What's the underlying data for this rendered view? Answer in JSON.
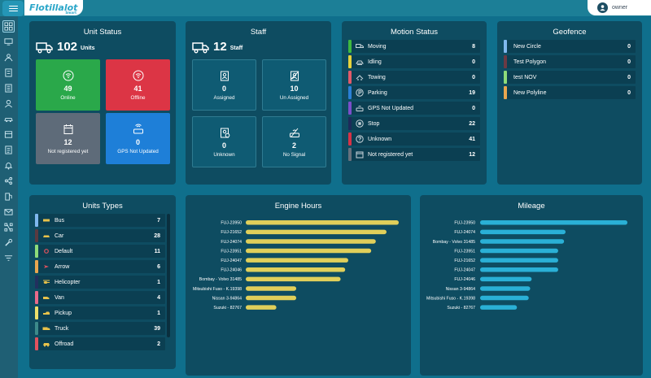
{
  "app": {
    "logo_text": "Flotillalot",
    "logo_sub": "Smart",
    "user_name": "owner"
  },
  "sidebar": {
    "items": [
      {
        "icon": "dashboard-icon"
      },
      {
        "icon": "monitor-icon"
      },
      {
        "icon": "route-icon"
      },
      {
        "icon": "notebook-icon"
      },
      {
        "icon": "report-icon"
      },
      {
        "icon": "person-icon"
      },
      {
        "icon": "car-icon"
      },
      {
        "icon": "inventory-icon"
      },
      {
        "icon": "list-icon"
      },
      {
        "icon": "bell-icon"
      },
      {
        "icon": "share-icon"
      },
      {
        "icon": "fuel-icon"
      },
      {
        "icon": "mail-icon"
      },
      {
        "icon": "network-icon"
      },
      {
        "icon": "wrench-icon"
      },
      {
        "icon": "filter-icon"
      }
    ]
  },
  "unit_status": {
    "title": "Unit Status",
    "count": "102",
    "unit_label": "Units",
    "tiles": [
      {
        "value": "49",
        "label": "Online",
        "color": "#2aa84a",
        "icon": "wifi-icon"
      },
      {
        "value": "41",
        "label": "Offline",
        "color": "#dc3545",
        "icon": "wifi-off-icon"
      },
      {
        "value": "12",
        "label": "Not registered yet",
        "color": "#5e6b79",
        "icon": "calendar-icon"
      },
      {
        "value": "0",
        "label": "GPS Not Updated",
        "color": "#1e7fd8",
        "icon": "gps-device-icon"
      }
    ]
  },
  "staff": {
    "title": "Staff",
    "count": "12",
    "unit_label": "Staff",
    "tiles": [
      {
        "value": "0",
        "label": "Assigned",
        "icon": "assigned-icon"
      },
      {
        "value": "10",
        "label": "Un Assigned",
        "icon": "unassigned-icon"
      },
      {
        "value": "0",
        "label": "Unknown",
        "icon": "unknown-icon"
      },
      {
        "value": "2",
        "label": "No Signal",
        "icon": "no-signal-icon"
      }
    ]
  },
  "motion_status": {
    "title": "Motion Status",
    "rows": [
      {
        "label": "Moving",
        "value": "8",
        "color": "#3fb83f",
        "icon": "truck-icon"
      },
      {
        "label": "Idling",
        "value": "0",
        "color": "#e6d23c",
        "icon": "idle-icon"
      },
      {
        "label": "Towing",
        "value": "0",
        "color": "#e05a6a",
        "icon": "tow-icon"
      },
      {
        "label": "Parking",
        "value": "19",
        "color": "#2a7fd6",
        "icon": "parking-icon"
      },
      {
        "label": "GPS Not Updated",
        "value": "0",
        "color": "#7b4fc9",
        "icon": "gps-icon"
      },
      {
        "label": "Stop",
        "value": "22",
        "color": "#1e2a5a",
        "icon": "stop-icon"
      },
      {
        "label": "Unknown",
        "value": "41",
        "color": "#d63347",
        "icon": "question-icon"
      },
      {
        "label": "Not registered yet",
        "value": "12",
        "color": "#68727e",
        "icon": "calendar-icon"
      }
    ]
  },
  "geofence": {
    "title": "Geofence",
    "rows": [
      {
        "label": "New Circle",
        "value": "0",
        "color": "#7fb8ee"
      },
      {
        "label": "Test Polygon",
        "value": "0",
        "color": "#6b3a44"
      },
      {
        "label": "test NOV",
        "value": "0",
        "color": "#8ddc7a"
      },
      {
        "label": "New Polyline",
        "value": "0",
        "color": "#e8a64f"
      }
    ]
  },
  "units_types": {
    "title": "Units Types",
    "rows": [
      {
        "label": "Bus",
        "value": "7",
        "color": "#7fb8ee"
      },
      {
        "label": "Car",
        "value": "28",
        "color": "#5a3a40"
      },
      {
        "label": "Default",
        "value": "11",
        "color": "#8ddc7a"
      },
      {
        "label": "Arrow",
        "value": "6",
        "color": "#e8a64f"
      },
      {
        "label": "Helicopter",
        "value": "1",
        "color": "#22305e"
      },
      {
        "label": "Van",
        "value": "4",
        "color": "#e86a8a"
      },
      {
        "label": "Pickup",
        "value": "1",
        "color": "#ece06a"
      },
      {
        "label": "Truck",
        "value": "39",
        "color": "#3c8a8a"
      },
      {
        "label": "Offroad",
        "value": "2",
        "color": "#e0525e"
      }
    ]
  },
  "engine_hours": {
    "title": "Engine Hours",
    "bar_color": "#e0cf5a"
  },
  "mileage": {
    "title": "Mileage",
    "bar_color": "#2ab0d6"
  },
  "chart_data": [
    {
      "type": "bar",
      "title": "Engine Hours",
      "orientation": "horizontal",
      "categories": [
        "FUJ-23950",
        "FUJ-21652",
        "FUJ-24074",
        "FUJ-23951",
        "FUJ-24047",
        "FUJ-24046",
        "Bombay - Volvo 31485",
        "Mitsubishi Fuso - K.19398",
        "Nissan 3-94864",
        "Suzuki - 82767"
      ],
      "values": [
        100,
        92,
        85,
        82,
        67,
        65,
        62,
        33,
        33,
        20
      ]
    },
    {
      "type": "bar",
      "title": "Mileage",
      "orientation": "horizontal",
      "categories": [
        "FUJ-23950",
        "FUJ-24074",
        "Bombay - Volvo 31485",
        "FUJ-23951",
        "FUJ-21652",
        "FUJ-24047",
        "FUJ-24046",
        "Nissan 3-94864",
        "Mitsubishi Fuso - K.19398",
        "Suzuki - 82767"
      ],
      "values": [
        100,
        58,
        57,
        53,
        53,
        53,
        35,
        34,
        33,
        25
      ]
    }
  ]
}
